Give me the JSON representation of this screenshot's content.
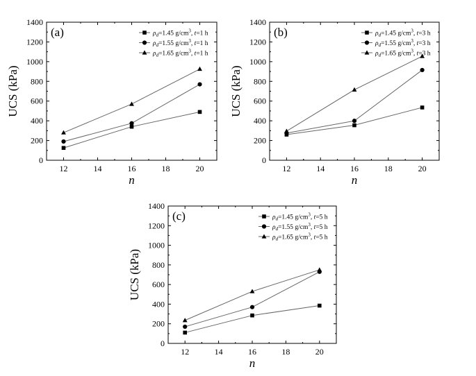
{
  "chart_data": [
    {
      "type": "line",
      "panel_label": "(a)",
      "xlabel": "n",
      "ylabel": "UCS (kPa)",
      "x": [
        12,
        16,
        20
      ],
      "xlim": [
        11,
        21
      ],
      "ylim": [
        0,
        1400
      ],
      "xticks": [
        "12",
        "14",
        "16",
        "18",
        "20"
      ],
      "yticks": [
        "0",
        "200",
        "400",
        "600",
        "800",
        "1000",
        "1200",
        "1400"
      ],
      "legend_position": "top-right",
      "series": [
        {
          "name": "ρd=1.45 g/cm³, t=1 h",
          "marker": "square",
          "values": [
            125,
            340,
            490
          ]
        },
        {
          "name": "ρd=1.55 g/cm³, t=1 h",
          "marker": "circle",
          "values": [
            190,
            375,
            770
          ]
        },
        {
          "name": "ρd=1.65 g/cm³, t=1 h",
          "marker": "triangle",
          "values": [
            280,
            570,
            925
          ]
        }
      ]
    },
    {
      "type": "line",
      "panel_label": "(b)",
      "xlabel": "n",
      "ylabel": "UCS (kPa)",
      "x": [
        12,
        16,
        20
      ],
      "xlim": [
        11,
        21
      ],
      "ylim": [
        0,
        1400
      ],
      "xticks": [
        "12",
        "14",
        "16",
        "18",
        "20"
      ],
      "yticks": [
        "0",
        "200",
        "400",
        "600",
        "800",
        "1000",
        "1200",
        "1400"
      ],
      "legend_position": "top-right",
      "series": [
        {
          "name": "ρd=1.45 g/cm³, t=3 h",
          "marker": "square",
          "values": [
            260,
            355,
            535
          ]
        },
        {
          "name": "ρd=1.55 g/cm³, t=3 h",
          "marker": "circle",
          "values": [
            275,
            400,
            915
          ]
        },
        {
          "name": "ρd=1.65 g/cm³, t=3 h",
          "marker": "triangle",
          "values": [
            295,
            715,
            1055
          ]
        }
      ]
    },
    {
      "type": "line",
      "panel_label": "(c)",
      "xlabel": "n",
      "ylabel": "UCS (kPa)",
      "x": [
        12,
        16,
        20
      ],
      "xlim": [
        11,
        21
      ],
      "ylim": [
        0,
        1400
      ],
      "xticks": [
        "12",
        "14",
        "16",
        "18",
        "20"
      ],
      "yticks": [
        "0",
        "200",
        "400",
        "600",
        "800",
        "1000",
        "1200",
        "1400"
      ],
      "legend_position": "top-right",
      "series": [
        {
          "name": "ρd=1.45 g/cm³, t=5 h",
          "marker": "square",
          "values": [
            110,
            285,
            385
          ]
        },
        {
          "name": "ρd=1.55 g/cm³, t=5 h",
          "marker": "circle",
          "values": [
            170,
            370,
            730
          ]
        },
        {
          "name": "ρd=1.65 g/cm³, t=5 h",
          "marker": "triangle",
          "values": [
            235,
            530,
            750
          ]
        }
      ]
    }
  ]
}
